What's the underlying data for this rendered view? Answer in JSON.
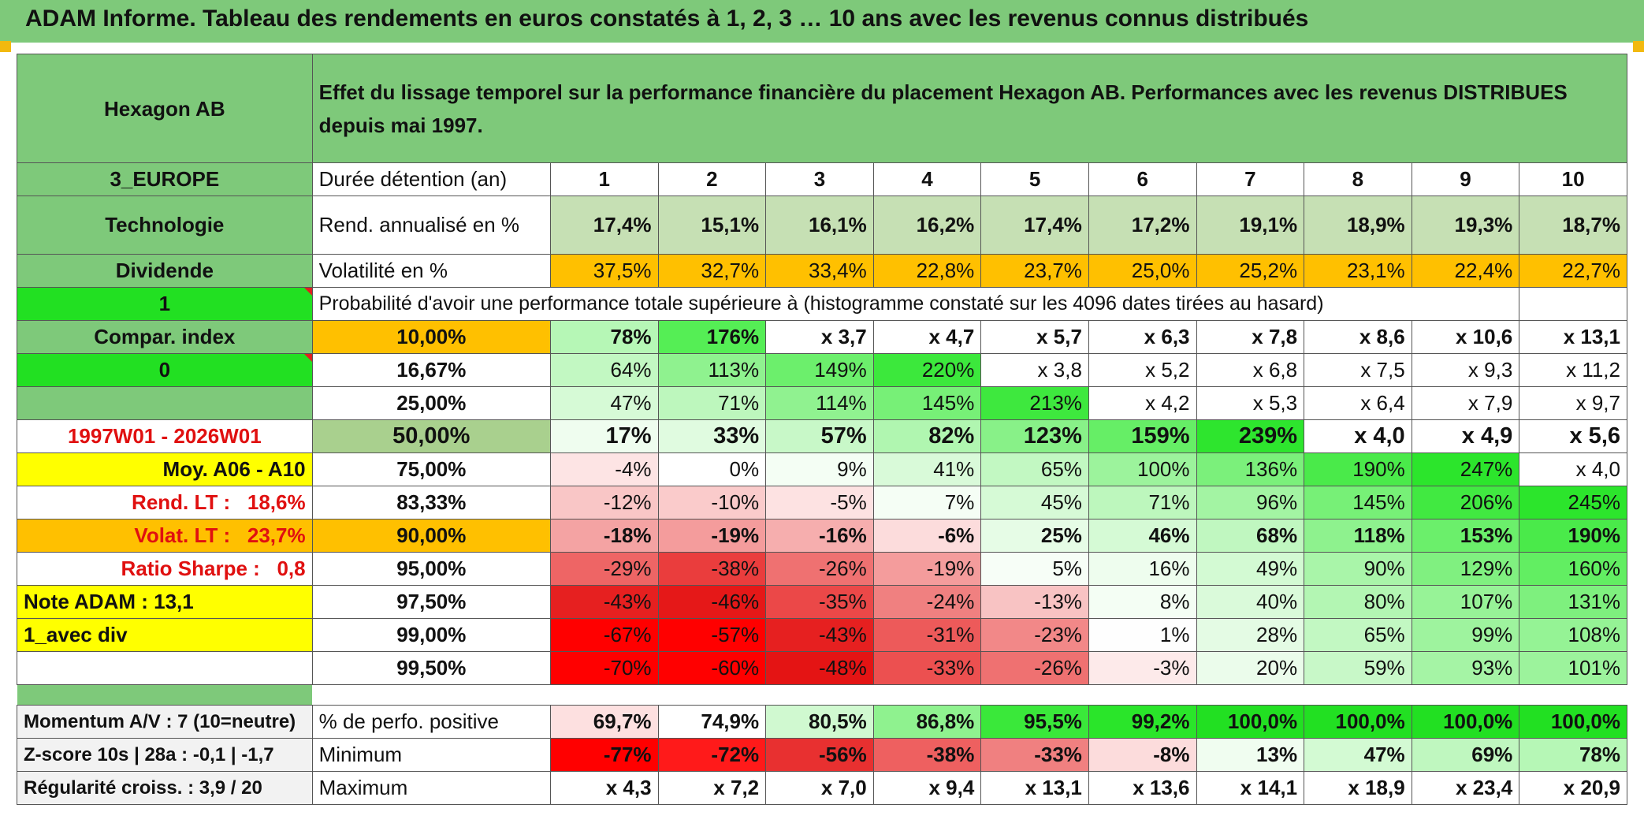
{
  "title": "ADAM Informe. Tableau des rendements en euros constatés à 1, 2, 3 … 10 ans avec les revenus connus distribués",
  "fund_name": "Hexagon AB",
  "header_text": "Effet du lissage temporel sur la performance financière du placement Hexagon AB. Performances avec les revenus DISTRIBUES depuis mai 1997.",
  "left": {
    "zone": "3_EUROPE",
    "sector": "Technologie",
    "dividend": "Dividende",
    "value1": "1",
    "compar": "Compar. index",
    "value0": "0",
    "period": "1997W01 - 2026W01",
    "moy": "Moy. A06 - A10",
    "rend_lt_label": "Rend. LT :",
    "rend_lt_value": "18,6%",
    "volat_lt_label": "Volat. LT :",
    "volat_lt_value": "23,7%",
    "sharpe_label": "Ratio Sharpe :",
    "sharpe_value": "0,8",
    "note": "Note ADAM : 13,1",
    "avec_div": "1_avec div",
    "momentum": "Momentum A/V : 7 (10=neutre)",
    "zscore": "Z-score 10s | 28a : -0,1 | -1,7",
    "regularite": "Régularité croiss. : 3,9 / 20"
  },
  "row_labels": {
    "duree": "Durée détention (an)",
    "rend": "Rend. annualisé en %",
    "volat": "Volatilité en %",
    "proba": "Probabilité d'avoir une performance totale supérieure à (histogramme constaté sur les 4096 dates tirées au hasard)",
    "positive": "% de perfo. positive",
    "minimum": "Minimum",
    "maximum": "Maximum"
  },
  "years": [
    "1",
    "2",
    "3",
    "4",
    "5",
    "6",
    "7",
    "8",
    "9",
    "10"
  ],
  "rend": [
    "17,4%",
    "15,1%",
    "16,1%",
    "16,2%",
    "17,4%",
    "17,2%",
    "19,1%",
    "18,9%",
    "19,3%",
    "18,7%"
  ],
  "volat": [
    "37,5%",
    "32,7%",
    "33,4%",
    "22,8%",
    "23,7%",
    "25,0%",
    "25,2%",
    "23,1%",
    "22,4%",
    "22,7%"
  ],
  "quantiles": [
    {
      "label": "10,00%",
      "values": [
        "78%",
        "176%",
        "x 3,7",
        "x 4,7",
        "x 5,7",
        "x 6,3",
        "x 7,8",
        "x 8,6",
        "x 10,6",
        "x 13,1"
      ],
      "colors": [
        "#b6f7b6",
        "#55ee55",
        "#ffffff",
        "#ffffff",
        "#ffffff",
        "#ffffff",
        "#ffffff",
        "#ffffff",
        "#ffffff",
        "#ffffff"
      ]
    },
    {
      "label": "16,67%",
      "values": [
        "64%",
        "113%",
        "149%",
        "220%",
        "x 3,8",
        "x 5,2",
        "x 6,8",
        "x 7,5",
        "x 9,3",
        "x 11,2"
      ],
      "colors": [
        "#c2f8c2",
        "#8ff28f",
        "#6cef6c",
        "#3ce83c",
        "#ffffff",
        "#ffffff",
        "#ffffff",
        "#ffffff",
        "#ffffff",
        "#ffffff"
      ]
    },
    {
      "label": "25,00%",
      "values": [
        "47%",
        "71%",
        "114%",
        "145%",
        "213%",
        "x 4,2",
        "x 5,3",
        "x 6,4",
        "x 7,9",
        "x 9,7"
      ],
      "colors": [
        "#d6fad6",
        "#bdf7bd",
        "#90f290",
        "#77f077",
        "#3ee83e",
        "#ffffff",
        "#ffffff",
        "#ffffff",
        "#ffffff",
        "#ffffff"
      ]
    },
    {
      "label": "50,00%",
      "values": [
        "17%",
        "33%",
        "57%",
        "82%",
        "123%",
        "159%",
        "239%",
        "x 4,0",
        "x 4,9",
        "x 5,6"
      ],
      "colors": [
        "#effdef",
        "#e0fbe0",
        "#c8f8c8",
        "#b0f6b0",
        "#88f188",
        "#66ee66",
        "#2ee52e",
        "#ffffff",
        "#ffffff",
        "#ffffff"
      ]
    },
    {
      "label": "75,00%",
      "values": [
        "-4%",
        "0%",
        "9%",
        "41%",
        "65%",
        "100%",
        "136%",
        "190%",
        "247%",
        "x 4,0"
      ],
      "colors": [
        "#fde4e4",
        "#ffffff",
        "#f4fef4",
        "#d9fad9",
        "#c2f8c2",
        "#9cf39c",
        "#7bf07b",
        "#4aea4a",
        "#2ce52c",
        "#ffffff"
      ]
    },
    {
      "label": "83,33%",
      "values": [
        "-12%",
        "-10%",
        "-5%",
        "7%",
        "45%",
        "71%",
        "96%",
        "145%",
        "206%",
        "245%"
      ],
      "colors": [
        "#f9c6c6",
        "#facbcb",
        "#fde2e2",
        "#f5fef5",
        "#d6fad6",
        "#bdf7bd",
        "#a3f4a3",
        "#77f077",
        "#41e941",
        "#2ce52c"
      ]
    },
    {
      "label": "90,00%",
      "values": [
        "-18%",
        "-19%",
        "-16%",
        "-6%",
        "25%",
        "46%",
        "68%",
        "118%",
        "153%",
        "190%"
      ],
      "colors": [
        "#f4a3a3",
        "#f49c9c",
        "#f6aeae",
        "#fcdcdc",
        "#e6fce6",
        "#d5fad5",
        "#c0f7c0",
        "#8ef28e",
        "#6bef6b",
        "#4aea4a"
      ]
    },
    {
      "label": "95,00%",
      "values": [
        "-29%",
        "-38%",
        "-26%",
        "-19%",
        "5%",
        "16%",
        "49%",
        "90%",
        "129%",
        "160%"
      ],
      "colors": [
        "#ee6565",
        "#ea3d3d",
        "#ef7171",
        "#f49c9c",
        "#f7fef7",
        "#eefdee",
        "#d3fad3",
        "#a9f5a9",
        "#80f080",
        "#62ee62"
      ]
    },
    {
      "label": "97,50%",
      "values": [
        "-43%",
        "-46%",
        "-35%",
        "-24%",
        "-13%",
        "8%",
        "40%",
        "80%",
        "107%",
        "131%"
      ],
      "colors": [
        "#e62020",
        "#e51818",
        "#eb4848",
        "#f08080",
        "#f8c3c3",
        "#f4fef4",
        "#dafada",
        "#b3f6b3",
        "#97f397",
        "#7ef07e"
      ]
    },
    {
      "label": "99,00%",
      "values": [
        "-67%",
        "-57%",
        "-43%",
        "-31%",
        "-23%",
        "1%",
        "28%",
        "65%",
        "99%",
        "108%"
      ],
      "colors": [
        "#ff0000",
        "#ff0000",
        "#e62020",
        "#ed5a5a",
        "#f28888",
        "#fefefe",
        "#e4fbe4",
        "#c2f8c2",
        "#9ef39e",
        "#95f395"
      ]
    },
    {
      "label": "99,50%",
      "values": [
        "-70%",
        "-60%",
        "-48%",
        "-33%",
        "-26%",
        "-3%",
        "20%",
        "59%",
        "93%",
        "101%"
      ],
      "colors": [
        "#ff0000",
        "#ff0000",
        "#e41414",
        "#ec5050",
        "#ef7171",
        "#fdeaea",
        "#ebfceb",
        "#c8f8c8",
        "#a5f4a5",
        "#9cf39c"
      ]
    }
  ],
  "positive": [
    "69,7%",
    "74,9%",
    "80,5%",
    "86,8%",
    "95,5%",
    "99,2%",
    "100,0%",
    "100,0%",
    "100,0%",
    "100,0%"
  ],
  "positive_colors": [
    "#fde0e0",
    "#ffffff",
    "#d0f9d0",
    "#8ff28f",
    "#3ae83a",
    "#2ae52a",
    "#22e022",
    "#22e022",
    "#22e022",
    "#22e022"
  ],
  "minimum": [
    "-77%",
    "-72%",
    "-56%",
    "-38%",
    "-33%",
    "-8%",
    "13%",
    "47%",
    "69%",
    "78%"
  ],
  "minimum_colors": [
    "#ff0000",
    "#ff1a1a",
    "#e83030",
    "#ee6060",
    "#f08080",
    "#fcdcdc",
    "#f0fdf0",
    "#d3fad3",
    "#bff7bf",
    "#b6f7b6"
  ],
  "maximum": [
    "x 4,3",
    "x 7,2",
    "x 7,0",
    "x 9,4",
    "x 13,1",
    "x 13,6",
    "x 14,1",
    "x 18,9",
    "x 23,4",
    "x 20,9"
  ]
}
